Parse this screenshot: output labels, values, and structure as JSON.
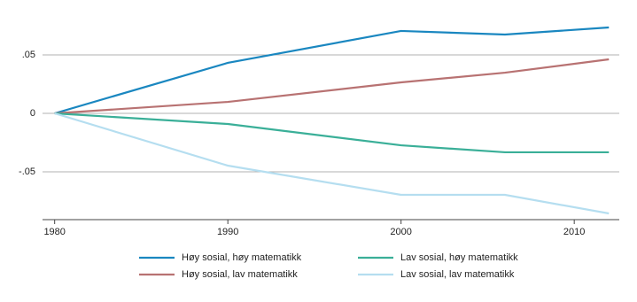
{
  "chart_data": {
    "type": "line",
    "x": [
      1980,
      1990,
      2000,
      2006,
      2012
    ],
    "series": [
      {
        "name": "Høy sosial, høy matematikk",
        "color": "#1a87c0",
        "values": [
          0,
          0.0432,
          0.0705,
          0.0674,
          0.0735
        ]
      },
      {
        "name": "Høy sosial, lav matematikk",
        "color": "#b87272",
        "values": [
          0,
          0.0098,
          0.0265,
          0.0348,
          0.0462
        ]
      },
      {
        "name": "Lav sosial, høy matematikk",
        "color": "#3aaf98",
        "values": [
          0,
          -0.0091,
          -0.0273,
          -0.0333,
          -0.0333
        ]
      },
      {
        "name": "Lav sosial, lav matematikk",
        "color": "#b5def0",
        "values": [
          0,
          -0.0447,
          -0.0697,
          -0.0697,
          -0.0856
        ]
      }
    ],
    "xlim": [
      1979.3,
      2012.6
    ],
    "xticks": [
      1980,
      1990,
      2000,
      2010
    ],
    "ylim": [
      -0.0909,
      0.0856
    ],
    "yticks": [
      {
        "value": 0.05,
        "label": ".05"
      },
      0,
      {
        "value": -0.05,
        "label": "-.05"
      }
    ],
    "grid": true
  }
}
